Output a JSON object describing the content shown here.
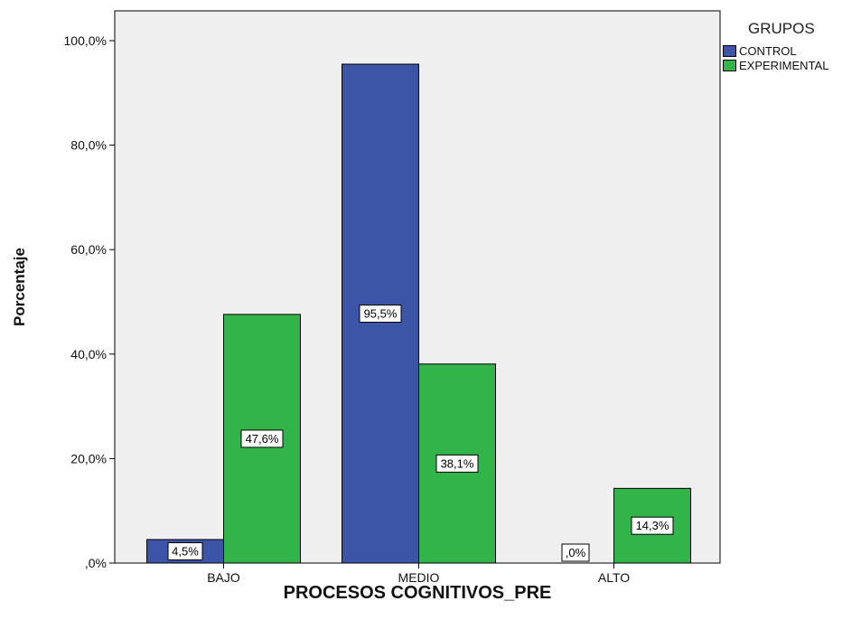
{
  "chart_data": {
    "type": "bar",
    "title": "",
    "xlabel": "PROCESOS COGNITIVOS_PRE",
    "ylabel": "Porcentaje",
    "categories": [
      "BAJO",
      "MEDIO",
      "ALTO"
    ],
    "series": [
      {
        "name": "CONTROL",
        "color": "#3d55a8",
        "values": [
          4.5,
          95.5,
          0.0
        ],
        "labels": [
          "4,5%",
          "95,5%",
          ",0%"
        ]
      },
      {
        "name": "EXPERIMENTAL",
        "color": "#33b44a",
        "values": [
          47.6,
          38.1,
          14.3
        ],
        "labels": [
          "47,6%",
          "38,1%",
          "14,3%"
        ]
      }
    ],
    "ylim": [
      0,
      100
    ],
    "yticks": [
      0,
      20,
      40,
      60,
      80,
      100
    ],
    "ytick_labels": [
      ",0%",
      "20,0%",
      "40,0%",
      "60,0%",
      "80,0%",
      "100,0%"
    ],
    "legend_title": "GRUPOS",
    "legend_position": "right",
    "background": "#f0f0f0",
    "grid": false
  }
}
